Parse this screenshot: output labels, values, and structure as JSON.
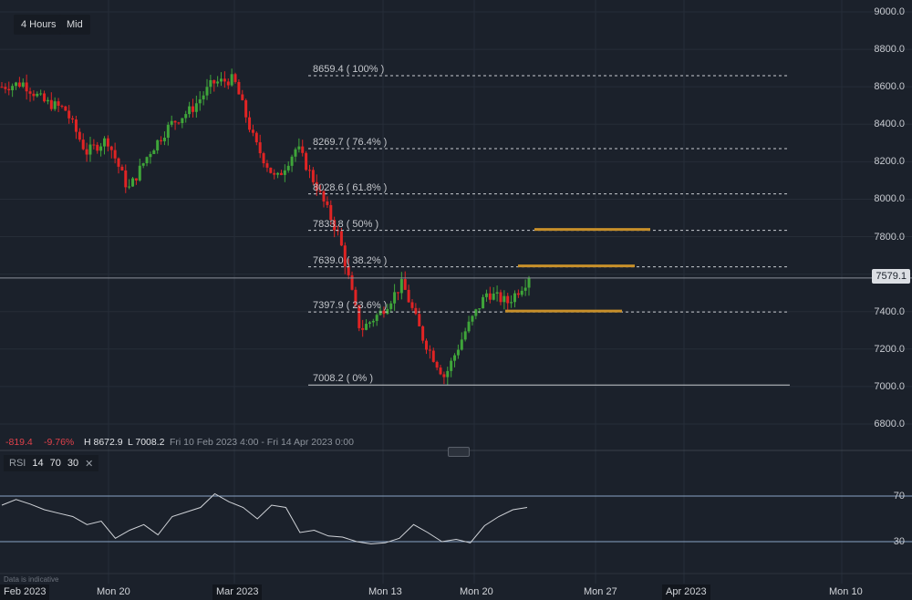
{
  "toolbar": {
    "timeframe": "4 Hours",
    "price_type": "Mid"
  },
  "instrument_stats": {
    "change": "-819.4",
    "change_pct": "-9.76%",
    "high": "H 8672.9",
    "low": "L 7008.2",
    "range": "Fri 10 Feb 2023 4:00 - Fri 14 Apr 2023 0:00"
  },
  "current_price": "7579.1",
  "indicator": {
    "name": "RSI",
    "period": "14",
    "upper": "70",
    "lower": "30",
    "remove_label": "✕"
  },
  "footer_note": "Data is indicative",
  "colors": {
    "background": "#1b212b",
    "up_candle": "#3fa53a",
    "down_candle": "#e02424",
    "fib_line": "#c8cbd0",
    "resistance_marker": "#c8902a",
    "rsi_line": "#d0d3d8",
    "rsi_band": "#8aa4c4"
  },
  "chart_data": [
    {
      "type": "candlestick",
      "title": "4 Hours Mid",
      "xlabel": "",
      "ylabel": "",
      "y_ticks": [
        "9000.0",
        "8800.0",
        "8600.0",
        "8400.0",
        "8200.0",
        "8000.0",
        "7800.0",
        "7600.0",
        "7400.0",
        "7200.0",
        "7000.0",
        "6800.0"
      ],
      "ylim": [
        6800,
        9000
      ],
      "x_ticks": [
        "Feb 2023",
        "Mon 20",
        "Mar 2023",
        "Mon 13",
        "Mon 20",
        "Mon 27",
        "Apr 2023",
        "Mon 10"
      ],
      "grid": true,
      "last_price": 7579.1,
      "high": 8672.9,
      "low": 7008.2,
      "fibonacci_levels": [
        {
          "label": "8659.4 ( 100% )",
          "price": 8659.4
        },
        {
          "label": "8269.7 ( 76.4% )",
          "price": 8269.7
        },
        {
          "label": "8028.6 ( 61.8% )",
          "price": 8028.6
        },
        {
          "label": "7833.8 ( 50% )",
          "price": 7833.8
        },
        {
          "label": "7639.0 ( 38.2% )",
          "price": 7639.0
        },
        {
          "label": "7397.9 ( 23.6% )",
          "price": 7397.9
        },
        {
          "label": "7008.2 ( 0% )",
          "price": 7008.2
        }
      ],
      "highlight_levels": [
        7833.8,
        7639.0,
        7397.9
      ],
      "approx_close_path": [
        {
          "date": "Feb 10",
          "close": 8600
        },
        {
          "date": "Feb 13",
          "close": 8620
        },
        {
          "date": "Feb 15",
          "close": 8520
        },
        {
          "date": "Feb 17",
          "close": 8480
        },
        {
          "date": "Feb 20",
          "close": 8250
        },
        {
          "date": "Feb 22",
          "close": 8320
        },
        {
          "date": "Feb 24",
          "close": 8050
        },
        {
          "date": "Feb 27",
          "close": 8250
        },
        {
          "date": "Mar 1",
          "close": 8400
        },
        {
          "date": "Mar 3",
          "close": 8480
        },
        {
          "date": "Mar 6",
          "close": 8620
        },
        {
          "date": "Mar 7",
          "close": 8640
        },
        {
          "date": "Mar 8",
          "close": 8300
        },
        {
          "date": "Mar 10",
          "close": 8100
        },
        {
          "date": "Mar 13",
          "close": 8280
        },
        {
          "date": "Mar 14",
          "close": 8050
        },
        {
          "date": "Mar 15",
          "close": 7800
        },
        {
          "date": "Mar 16",
          "close": 7300
        },
        {
          "date": "Mar 17",
          "close": 7400
        },
        {
          "date": "Mar 20",
          "close": 7550
        },
        {
          "date": "Mar 21",
          "close": 7250
        },
        {
          "date": "Mar 22",
          "close": 7050
        },
        {
          "date": "Mar 23",
          "close": 7300
        },
        {
          "date": "Mar 24",
          "close": 7500
        },
        {
          "date": "Mar 27",
          "close": 7450
        },
        {
          "date": "Mar 28",
          "close": 7579.1
        }
      ]
    },
    {
      "type": "line",
      "title": "RSI 14 70 30",
      "y_ticks": [
        "70",
        "30"
      ],
      "ylim": [
        20,
        80
      ],
      "series": [
        {
          "name": "RSI(14)",
          "approx_values": [
            62,
            67,
            63,
            58,
            55,
            52,
            45,
            48,
            33,
            40,
            45,
            36,
            52,
            56,
            60,
            72,
            65,
            60,
            50,
            62,
            60,
            38,
            40,
            35,
            34,
            30,
            28,
            29,
            33,
            45,
            38,
            30,
            32,
            29,
            44,
            52,
            58,
            60
          ]
        }
      ]
    }
  ]
}
